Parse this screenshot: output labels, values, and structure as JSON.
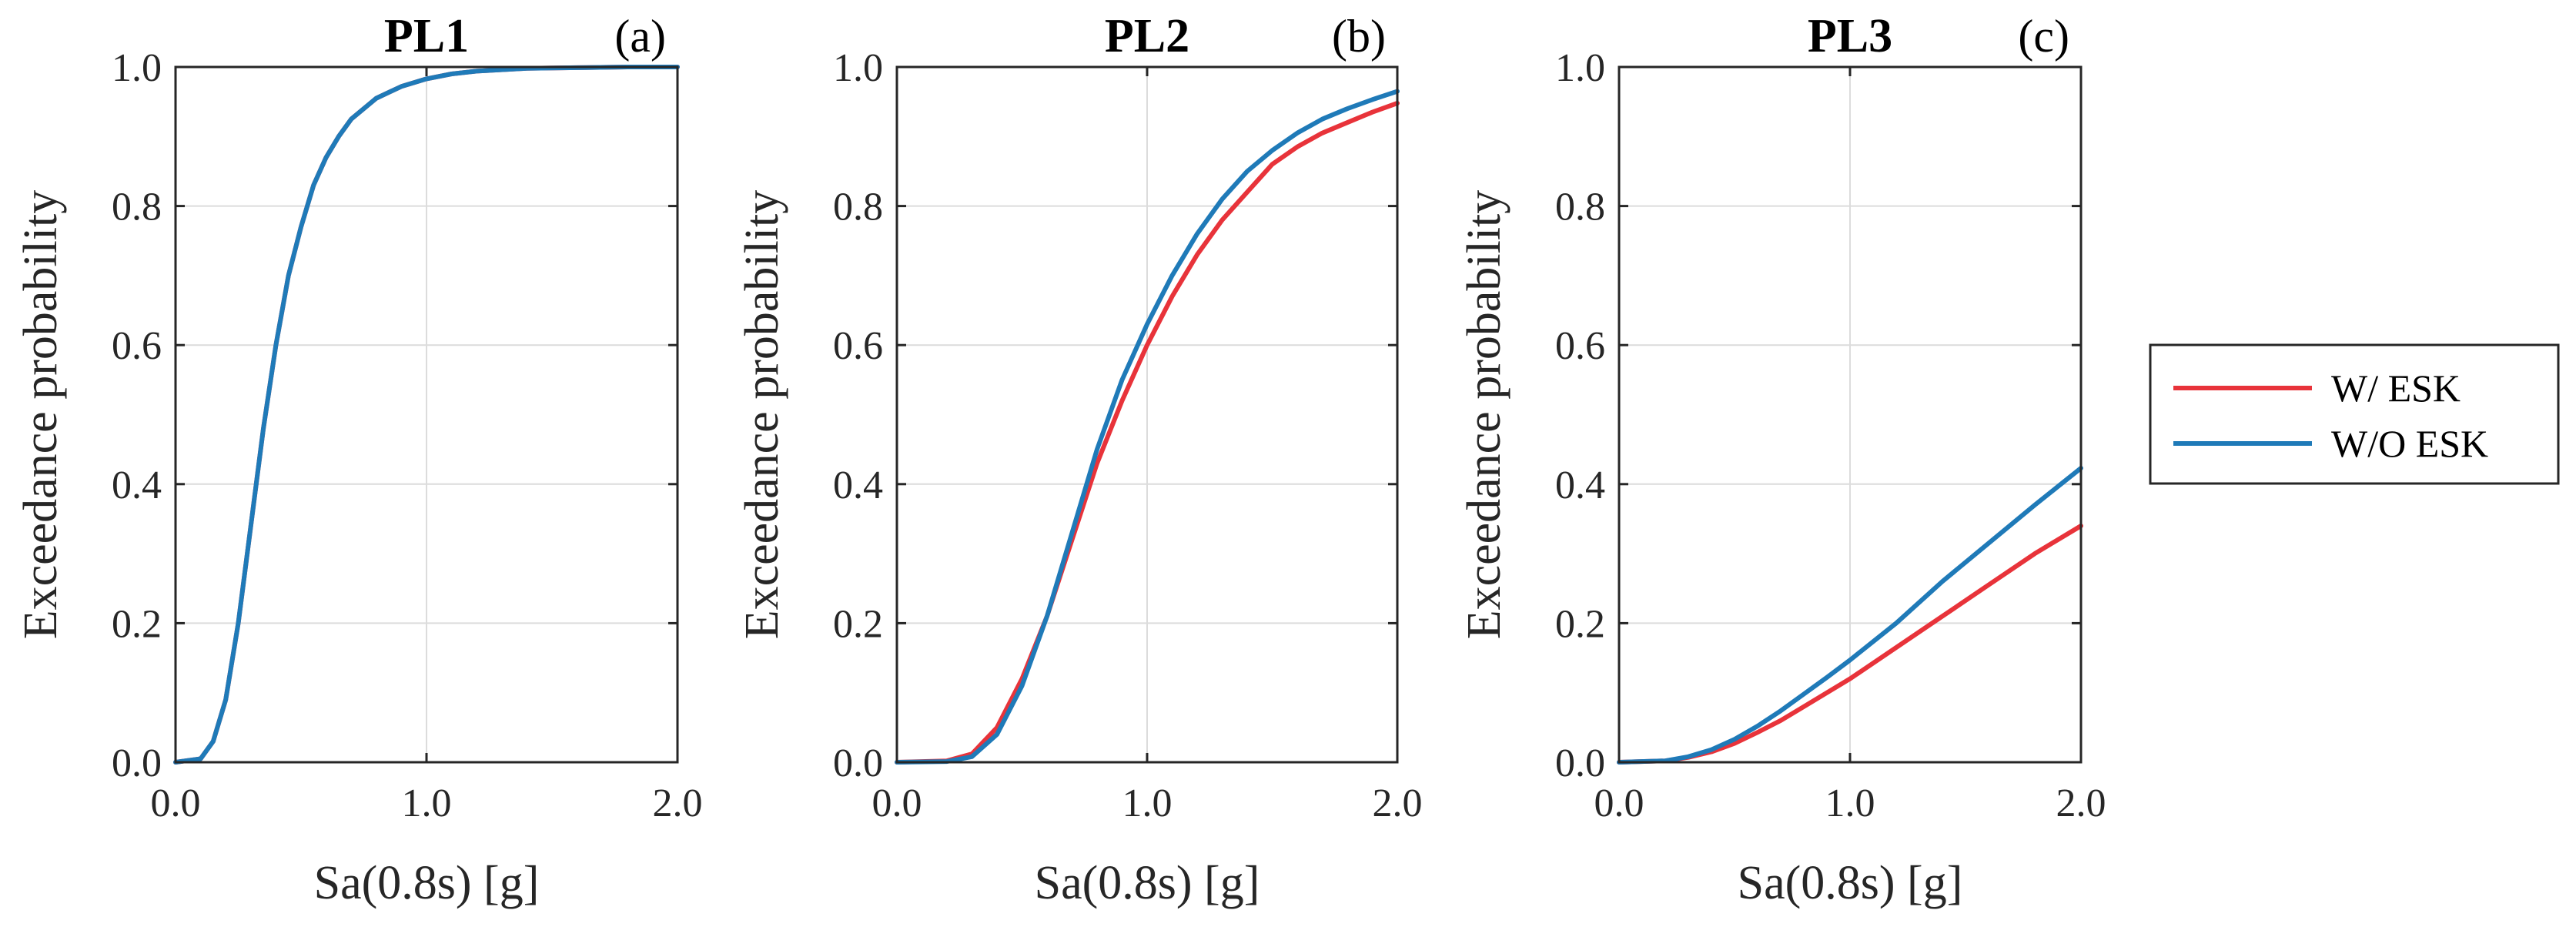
{
  "colors": {
    "w_esk": "#E8333A",
    "wo_esk": "#1F7AB8",
    "grid": "#DCDCDC",
    "axis": "#262626"
  },
  "legend": {
    "entries": [
      "W/ ESK",
      "W/O ESK"
    ],
    "placement": "right"
  },
  "chart_data": [
    {
      "type": "line",
      "title": "PL1",
      "panel_label": "(a)",
      "xlabel": "Sa(0.8s) [g]",
      "ylabel": "Exceedance probability",
      "xlim": [
        0,
        2
      ],
      "ylim": [
        0,
        1
      ],
      "xticks": [
        "0.0",
        "1.0",
        "2.0"
      ],
      "yticks": [
        "0.0",
        "0.2",
        "0.4",
        "0.6",
        "0.8",
        "1.0"
      ],
      "grid": true,
      "series": [
        {
          "name": "W/ ESK",
          "color": "#E8333A",
          "x": [
            0,
            0.1,
            0.15,
            0.2,
            0.25,
            0.3,
            0.35,
            0.4,
            0.45,
            0.5,
            0.55,
            0.6,
            0.65,
            0.7,
            0.8,
            0.9,
            1.0,
            1.1,
            1.2,
            1.4,
            1.6,
            1.8,
            2.0
          ],
          "y": [
            0,
            0.005,
            0.03,
            0.09,
            0.2,
            0.34,
            0.48,
            0.6,
            0.7,
            0.77,
            0.83,
            0.87,
            0.9,
            0.925,
            0.955,
            0.972,
            0.983,
            0.99,
            0.994,
            0.998,
            0.999,
            1.0,
            1.0
          ]
        },
        {
          "name": "W/O ESK",
          "color": "#1F7AB8",
          "x": [
            0,
            0.1,
            0.15,
            0.2,
            0.25,
            0.3,
            0.35,
            0.4,
            0.45,
            0.5,
            0.55,
            0.6,
            0.65,
            0.7,
            0.8,
            0.9,
            1.0,
            1.1,
            1.2,
            1.4,
            1.6,
            1.8,
            2.0
          ],
          "y": [
            0,
            0.005,
            0.03,
            0.09,
            0.2,
            0.34,
            0.48,
            0.6,
            0.7,
            0.77,
            0.83,
            0.87,
            0.9,
            0.925,
            0.955,
            0.972,
            0.983,
            0.99,
            0.994,
            0.998,
            0.999,
            1.0,
            1.0
          ]
        }
      ]
    },
    {
      "type": "line",
      "title": "PL2",
      "panel_label": "(b)",
      "xlabel": "Sa(0.8s) [g]",
      "ylabel": "Exceedance probability",
      "xlim": [
        0,
        2
      ],
      "ylim": [
        0,
        1
      ],
      "xticks": [
        "0.0",
        "1.0",
        "2.0"
      ],
      "yticks": [
        "0.0",
        "0.2",
        "0.4",
        "0.6",
        "0.8",
        "1.0"
      ],
      "grid": true,
      "series": [
        {
          "name": "W/ ESK",
          "color": "#E8333A",
          "x": [
            0,
            0.2,
            0.3,
            0.4,
            0.5,
            0.6,
            0.7,
            0.8,
            0.9,
            1.0,
            1.1,
            1.2,
            1.3,
            1.4,
            1.5,
            1.6,
            1.7,
            1.8,
            1.9,
            2.0
          ],
          "y": [
            0,
            0.002,
            0.012,
            0.05,
            0.12,
            0.21,
            0.32,
            0.43,
            0.52,
            0.6,
            0.67,
            0.73,
            0.78,
            0.82,
            0.86,
            0.885,
            0.905,
            0.92,
            0.935,
            0.948
          ]
        },
        {
          "name": "W/O ESK",
          "color": "#1F7AB8",
          "x": [
            0,
            0.2,
            0.3,
            0.4,
            0.5,
            0.6,
            0.7,
            0.8,
            0.9,
            1.0,
            1.1,
            1.2,
            1.3,
            1.4,
            1.5,
            1.6,
            1.7,
            1.8,
            1.9,
            2.0
          ],
          "y": [
            0,
            0.001,
            0.008,
            0.04,
            0.11,
            0.21,
            0.33,
            0.45,
            0.55,
            0.63,
            0.7,
            0.76,
            0.81,
            0.85,
            0.88,
            0.905,
            0.925,
            0.94,
            0.953,
            0.965
          ]
        }
      ]
    },
    {
      "type": "line",
      "title": "PL3",
      "panel_label": "(c)",
      "xlabel": "Sa(0.8s) [g]",
      "ylabel": "Exceedance probability",
      "xlim": [
        0,
        2
      ],
      "ylim": [
        0,
        1
      ],
      "xticks": [
        "0.0",
        "1.0",
        "2.0"
      ],
      "yticks": [
        "0.0",
        "0.2",
        "0.4",
        "0.6",
        "0.8",
        "1.0"
      ],
      "grid": true,
      "series": [
        {
          "name": "W/ ESK",
          "color": "#E8333A",
          "x": [
            0,
            0.2,
            0.3,
            0.4,
            0.5,
            0.6,
            0.7,
            0.8,
            0.9,
            1.0,
            1.2,
            1.4,
            1.6,
            1.8,
            2.0
          ],
          "y": [
            0,
            0.002,
            0.007,
            0.015,
            0.027,
            0.043,
            0.06,
            0.08,
            0.1,
            0.12,
            0.165,
            0.21,
            0.255,
            0.3,
            0.34
          ]
        },
        {
          "name": "W/O ESK",
          "color": "#1F7AB8",
          "x": [
            0,
            0.2,
            0.3,
            0.4,
            0.5,
            0.6,
            0.7,
            0.8,
            0.9,
            1.0,
            1.2,
            1.4,
            1.6,
            1.8,
            2.0
          ],
          "y": [
            0,
            0.002,
            0.008,
            0.018,
            0.033,
            0.052,
            0.074,
            0.098,
            0.122,
            0.147,
            0.2,
            0.26,
            0.315,
            0.37,
            0.423
          ]
        }
      ]
    }
  ]
}
